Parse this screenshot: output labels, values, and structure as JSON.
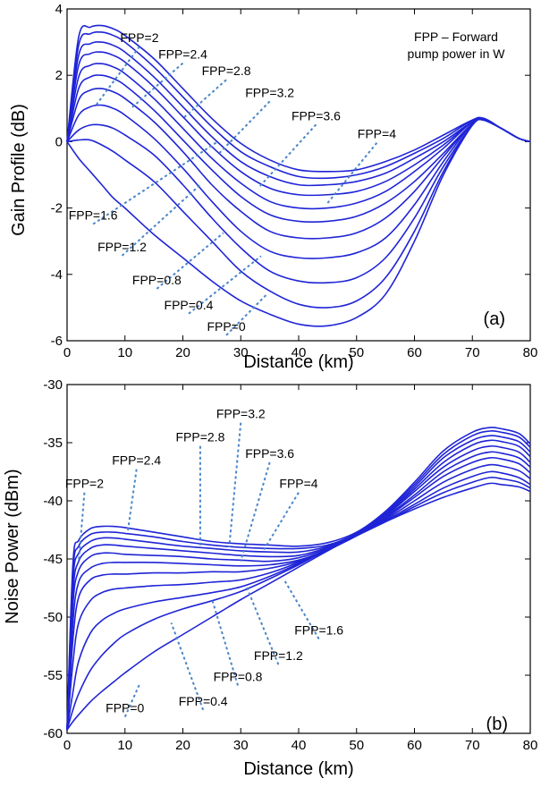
{
  "colors": {
    "curve": "#1f24d6",
    "leader": "#4a86c8",
    "axis": "#000000"
  },
  "chart_data": [
    {
      "type": "line",
      "panel_label": "(a)",
      "xlabel": "Distance (km)",
      "ylabel": "Gain Profile (dB)",
      "xlim": [
        0,
        80
      ],
      "ylim": [
        -6,
        4
      ],
      "xticks": [
        0,
        10,
        20,
        30,
        40,
        50,
        60,
        70,
        80
      ],
      "yticks": [
        -6,
        -4,
        -2,
        0,
        2,
        4
      ],
      "note": [
        "FPP – Forward",
        "pump power in W"
      ],
      "x": [
        0,
        2,
        4,
        6,
        8,
        10,
        15,
        20,
        25,
        30,
        35,
        40,
        45,
        50,
        55,
        60,
        65,
        70,
        72,
        75,
        78,
        80
      ],
      "series": [
        {
          "label": "FPP=0",
          "values": [
            0,
            -0.5,
            -0.9,
            -1.3,
            -1.7,
            -2.0,
            -2.8,
            -3.5,
            -4.2,
            -4.8,
            -5.2,
            -5.5,
            -5.55,
            -5.3,
            -4.6,
            -3.0,
            -1.0,
            0.5,
            0.65,
            0.4,
            0.1,
            0
          ]
        },
        {
          "label": "FPP=0.4",
          "values": [
            0,
            0.05,
            0.05,
            -0.1,
            -0.3,
            -0.55,
            -1.2,
            -2.1,
            -3.0,
            -3.9,
            -4.5,
            -4.9,
            -5.0,
            -4.8,
            -4.1,
            -2.7,
            -0.9,
            0.5,
            0.65,
            0.4,
            0.1,
            0
          ]
        },
        {
          "label": "FPP=0.8",
          "values": [
            0,
            0.35,
            0.5,
            0.5,
            0.4,
            0.2,
            -0.4,
            -1.3,
            -2.3,
            -3.2,
            -3.9,
            -4.2,
            -4.25,
            -4.1,
            -3.5,
            -2.3,
            -0.75,
            0.5,
            0.65,
            0.4,
            0.1,
            0
          ]
        },
        {
          "label": "FPP=1.2",
          "values": [
            0,
            0.8,
            1.05,
            1.1,
            1.0,
            0.8,
            0.1,
            -0.8,
            -1.8,
            -2.7,
            -3.3,
            -3.5,
            -3.5,
            -3.35,
            -2.9,
            -1.9,
            -0.6,
            0.55,
            0.65,
            0.4,
            0.1,
            0
          ]
        },
        {
          "label": "FPP=1.6",
          "values": [
            0,
            1.25,
            1.55,
            1.6,
            1.5,
            1.3,
            0.6,
            -0.3,
            -1.3,
            -2.1,
            -2.7,
            -2.9,
            -2.9,
            -2.75,
            -2.3,
            -1.5,
            -0.45,
            0.55,
            0.65,
            0.4,
            0.1,
            0
          ]
        },
        {
          "label": "FPP=2",
          "values": [
            0,
            1.6,
            1.95,
            2.0,
            1.9,
            1.7,
            0.95,
            0.05,
            -0.85,
            -1.65,
            -2.2,
            -2.4,
            -2.4,
            -2.25,
            -1.85,
            -1.2,
            -0.35,
            0.55,
            0.65,
            0.4,
            0.1,
            0
          ]
        },
        {
          "label": "FPP=2.4",
          "values": [
            0,
            1.95,
            2.3,
            2.35,
            2.25,
            2.05,
            1.3,
            0.4,
            -0.5,
            -1.25,
            -1.8,
            -2.0,
            -2.0,
            -1.85,
            -1.5,
            -0.9,
            -0.2,
            0.6,
            0.65,
            0.4,
            0.1,
            0
          ]
        },
        {
          "label": "FPP=2.8",
          "values": [
            0,
            2.3,
            2.65,
            2.7,
            2.6,
            2.4,
            1.65,
            0.75,
            -0.15,
            -0.9,
            -1.4,
            -1.6,
            -1.6,
            -1.5,
            -1.2,
            -0.7,
            -0.1,
            0.6,
            0.65,
            0.4,
            0.1,
            0
          ]
        },
        {
          "label": "FPP=3.2",
          "values": [
            0,
            2.6,
            2.95,
            3.0,
            2.9,
            2.7,
            1.95,
            1.05,
            0.15,
            -0.6,
            -1.05,
            -1.3,
            -1.3,
            -1.2,
            -0.95,
            -0.5,
            0.0,
            0.6,
            0.65,
            0.4,
            0.1,
            0
          ]
        },
        {
          "label": "FPP=3.6",
          "values": [
            0,
            2.9,
            3.25,
            3.3,
            3.2,
            3.0,
            2.25,
            1.35,
            0.45,
            -0.3,
            -0.75,
            -1.05,
            -1.1,
            -1.0,
            -0.75,
            -0.35,
            0.1,
            0.65,
            0.7,
            0.4,
            0.1,
            0
          ]
        },
        {
          "label": "FPP=4",
          "values": [
            0,
            3.15,
            3.45,
            3.5,
            3.4,
            3.2,
            2.5,
            1.6,
            0.7,
            -0.05,
            -0.55,
            -0.85,
            -0.9,
            -0.85,
            -0.6,
            -0.25,
            0.2,
            0.65,
            0.7,
            0.4,
            0.1,
            0
          ]
        }
      ],
      "annotations": [
        {
          "text": "FPP=2",
          "lx": 12.5,
          "ly": 3.0,
          "ax": 5,
          "ay": 1.1
        },
        {
          "text": "FPP=2.4",
          "lx": 20,
          "ly": 2.5,
          "ax": 11,
          "ay": 1.0
        },
        {
          "text": "FPP=2.8",
          "lx": 27.5,
          "ly": 2.0,
          "ax": 20,
          "ay": 0.7
        },
        {
          "text": "FPP=3.2",
          "lx": 35,
          "ly": 1.35,
          "ax": 26,
          "ay": -0.4
        },
        {
          "text": "FPP=3.6",
          "lx": 43,
          "ly": 0.65,
          "ax": 33,
          "ay": -1.4
        },
        {
          "text": "FPP=4",
          "lx": 53.5,
          "ly": 0.1,
          "ax": 45,
          "ay": -1.85
        },
        {
          "text": "FPP=1.6",
          "lx": 4.5,
          "ly": -2.35,
          "ax": 26,
          "ay": 0.0
        },
        {
          "text": "FPP=1.2",
          "lx": 9.5,
          "ly": -3.3,
          "ax": 23,
          "ay": -1.3
        },
        {
          "text": "FPP=0.8",
          "lx": 15.5,
          "ly": -4.3,
          "ax": 27,
          "ay": -2.75
        },
        {
          "text": "FPP=0.4",
          "lx": 21,
          "ly": -5.05,
          "ax": 33.5,
          "ay": -3.45
        },
        {
          "text": "FPP=0",
          "lx": 27.5,
          "ly": -5.7,
          "ax": 34.5,
          "ay": -4.6
        }
      ]
    },
    {
      "type": "line",
      "panel_label": "(b)",
      "xlabel": "Distance (km)",
      "ylabel": "Noise Power (dBm)",
      "xlim": [
        0,
        80
      ],
      "ylim": [
        -60,
        -30
      ],
      "xticks": [
        0,
        10,
        20,
        30,
        40,
        50,
        60,
        70,
        80
      ],
      "yticks": [
        -60,
        -55,
        -50,
        -45,
        -40,
        -35,
        -30
      ],
      "x": [
        0,
        1,
        2,
        4,
        6,
        8,
        10,
        15,
        20,
        25,
        30,
        35,
        40,
        45,
        50,
        55,
        60,
        65,
        70,
        73,
        75,
        78,
        80
      ],
      "series": [
        {
          "label": "FPP=0",
          "values": [
            -59.7,
            -59.0,
            -58.4,
            -57.3,
            -56.4,
            -55.6,
            -54.8,
            -53.0,
            -51.5,
            -50.0,
            -48.5,
            -47.1,
            -45.7,
            -44.3,
            -43.0,
            -41.8,
            -40.7,
            -39.7,
            -38.9,
            -38.5,
            -38.6,
            -38.8,
            -39.2
          ]
        },
        {
          "label": "FPP=0.4",
          "values": [
            -59.7,
            -58.0,
            -56.6,
            -54.6,
            -53.3,
            -52.3,
            -51.5,
            -50.2,
            -49.3,
            -48.6,
            -47.8,
            -46.7,
            -45.5,
            -44.2,
            -43.0,
            -41.8,
            -40.5,
            -39.3,
            -38.4,
            -38.0,
            -38.1,
            -38.4,
            -38.9
          ]
        },
        {
          "label": "FPP=0.8",
          "values": [
            -59.7,
            -56.5,
            -53.8,
            -51.4,
            -50.3,
            -49.7,
            -49.3,
            -48.7,
            -48.3,
            -47.9,
            -47.4,
            -46.5,
            -45.4,
            -44.2,
            -43.0,
            -41.7,
            -40.3,
            -38.9,
            -37.9,
            -37.5,
            -37.6,
            -38.0,
            -38.6
          ]
        },
        {
          "label": "FPP=1.2",
          "values": [
            -59.7,
            -54.0,
            -50.5,
            -48.6,
            -47.9,
            -47.6,
            -47.5,
            -47.3,
            -47.2,
            -47.0,
            -46.8,
            -46.2,
            -45.3,
            -44.2,
            -43.0,
            -41.6,
            -40.0,
            -38.4,
            -37.3,
            -36.9,
            -37.0,
            -37.4,
            -38.1
          ]
        },
        {
          "label": "FPP=1.6",
          "values": [
            -59.7,
            -52.0,
            -48.3,
            -46.8,
            -46.4,
            -46.3,
            -46.3,
            -46.2,
            -46.2,
            -46.1,
            -46.1,
            -45.8,
            -45.2,
            -44.2,
            -43.0,
            -41.5,
            -39.7,
            -37.9,
            -36.7,
            -36.3,
            -36.4,
            -36.8,
            -37.6
          ]
        },
        {
          "label": "FPP=2",
          "values": [
            -59.7,
            -50.5,
            -47.0,
            -45.8,
            -45.4,
            -45.3,
            -45.3,
            -45.3,
            -45.4,
            -45.5,
            -45.6,
            -45.5,
            -45.1,
            -44.2,
            -43.0,
            -41.4,
            -39.5,
            -37.5,
            -36.2,
            -35.8,
            -35.9,
            -36.3,
            -37.1
          ]
        },
        {
          "label": "FPP=2.4",
          "values": [
            -59.7,
            -49.0,
            -46.0,
            -44.8,
            -44.5,
            -44.5,
            -44.6,
            -44.7,
            -44.8,
            -45.0,
            -45.1,
            -45.2,
            -44.9,
            -44.1,
            -42.9,
            -41.3,
            -39.2,
            -37.1,
            -35.7,
            -35.3,
            -35.4,
            -35.8,
            -36.7
          ]
        },
        {
          "label": "FPP=2.8",
          "values": [
            -59.7,
            -48.0,
            -45.2,
            -44.1,
            -43.8,
            -43.8,
            -43.9,
            -44.1,
            -44.3,
            -44.5,
            -44.7,
            -44.8,
            -44.7,
            -44.0,
            -42.9,
            -41.2,
            -39.0,
            -36.7,
            -35.2,
            -34.8,
            -34.9,
            -35.3,
            -36.2
          ]
        },
        {
          "label": "FPP=3.2",
          "values": [
            -59.7,
            -47.0,
            -44.5,
            -43.5,
            -43.2,
            -43.2,
            -43.3,
            -43.6,
            -43.9,
            -44.1,
            -44.3,
            -44.4,
            -44.4,
            -43.9,
            -42.8,
            -41.1,
            -38.8,
            -36.3,
            -34.8,
            -34.4,
            -34.5,
            -34.9,
            -35.8
          ]
        },
        {
          "label": "FPP=3.6",
          "values": [
            -59.7,
            -46.2,
            -43.9,
            -42.9,
            -42.7,
            -42.7,
            -42.8,
            -43.1,
            -43.5,
            -43.8,
            -44.0,
            -44.1,
            -44.1,
            -43.8,
            -42.8,
            -41.0,
            -38.6,
            -36.0,
            -34.4,
            -34.0,
            -34.1,
            -34.5,
            -35.4
          ]
        },
        {
          "label": "FPP=4",
          "values": [
            -59.7,
            -45.5,
            -43.4,
            -42.4,
            -42.2,
            -42.2,
            -42.3,
            -42.7,
            -43.1,
            -43.5,
            -43.7,
            -43.8,
            -43.9,
            -43.6,
            -42.7,
            -40.9,
            -38.4,
            -35.7,
            -34.1,
            -33.7,
            -33.8,
            -34.2,
            -35.1
          ]
        }
      ],
      "annotations": [
        {
          "text": "FPP=2",
          "lx": 3,
          "ly": -38.9,
          "ax": 2,
          "ay": -45.3
        },
        {
          "text": "FPP=2.4",
          "lx": 12,
          "ly": -36.9,
          "ax": 10.5,
          "ay": -42.6
        },
        {
          "text": "FPP=2.8",
          "lx": 23,
          "ly": -34.9,
          "ax": 23,
          "ay": -43.9
        },
        {
          "text": "FPP=3.2",
          "lx": 30,
          "ly": -32.9,
          "ax": 28,
          "ay": -44.0
        },
        {
          "text": "FPP=3.6",
          "lx": 35,
          "ly": -36.3,
          "ax": 30,
          "ay": -45.2
        },
        {
          "text": "FPP=4",
          "lx": 40,
          "ly": -38.9,
          "ax": 34,
          "ay": -44.2
        },
        {
          "text": "FPP=1.6",
          "lx": 43.5,
          "ly": -51.5,
          "ax": 37.5,
          "ay": -46.8
        },
        {
          "text": "FPP=1.2",
          "lx": 36.5,
          "ly": -53.7,
          "ax": 31,
          "ay": -47.4
        },
        {
          "text": "FPP=0.8",
          "lx": 29.5,
          "ly": -55.5,
          "ax": 25,
          "ay": -48.4
        },
        {
          "text": "FPP=0.4",
          "lx": 23.5,
          "ly": -57.6,
          "ax": 18,
          "ay": -50.5
        },
        {
          "text": "FPP=0",
          "lx": 10,
          "ly": -58.2,
          "ax": 12.5,
          "ay": -55.8
        }
      ]
    }
  ]
}
